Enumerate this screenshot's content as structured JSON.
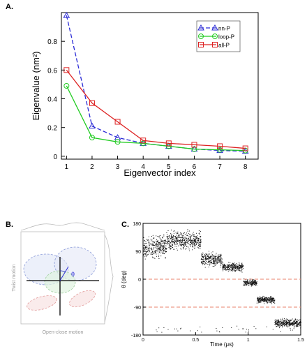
{
  "panels": {
    "a": "A.",
    "b": "B.",
    "c": "C."
  },
  "chart_data": [
    {
      "type": "line",
      "xlabel": "Eigenvector index",
      "ylabel": "Eigenvalue (nm²)",
      "xlim": [
        0.8,
        8.5
      ],
      "ylim": [
        -0.02,
        1.0
      ],
      "x_ticks": [
        1,
        2,
        3,
        4,
        5,
        6,
        7,
        8
      ],
      "y_ticks": [
        0,
        0.2,
        0.4,
        0.6,
        0.8
      ],
      "legend_position": "top-right",
      "x": [
        1,
        2,
        3,
        4,
        5,
        6,
        7,
        8
      ],
      "series": [
        {
          "name": "nn-P",
          "color": "#2b2bd6",
          "marker": "triangle",
          "dash": "6,3",
          "values": [
            0.98,
            0.21,
            0.13,
            0.09,
            0.07,
            0.05,
            0.04,
            0.035
          ]
        },
        {
          "name": "loop-P",
          "color": "#22cc22",
          "marker": "circle",
          "dash": "",
          "values": [
            0.49,
            0.13,
            0.1,
            0.09,
            0.07,
            0.05,
            0.045,
            0.04
          ]
        },
        {
          "name": "all-P",
          "color": "#dd2222",
          "marker": "square",
          "dash": "",
          "values": [
            0.6,
            0.37,
            0.24,
            0.11,
            0.09,
            0.08,
            0.07,
            0.055
          ]
        }
      ]
    },
    {
      "type": "scatter",
      "xlabel": "Open-close motion",
      "ylabel": "Twist motion",
      "angle_label": "θ"
    },
    {
      "type": "scatter",
      "xlabel": "Time (μs)",
      "ylabel": "θ (deg)",
      "xlim": [
        0,
        1.5
      ],
      "ylim": [
        -180,
        180
      ],
      "x_ticks": [
        0,
        0.5,
        1,
        1.5
      ],
      "x_tick_labels": [
        "0",
        "0.5",
        "1",
        "1.5"
      ],
      "y_ticks": [
        -180,
        -90,
        0,
        90,
        180
      ],
      "y_tick_labels": [
        "-180",
        "-90",
        "0",
        "90",
        "180"
      ],
      "reference_lines": [
        0,
        -90
      ],
      "segments": [
        {
          "x0": 0.0,
          "x1": 0.22,
          "mean": 105,
          "spread": 45
        },
        {
          "x0": 0.22,
          "x1": 0.55,
          "mean": 125,
          "spread": 40
        },
        {
          "x0": 0.55,
          "x1": 0.75,
          "mean": 65,
          "spread": 30
        },
        {
          "x0": 0.75,
          "x1": 0.95,
          "mean": 40,
          "spread": 18
        },
        {
          "x0": 0.95,
          "x1": 1.08,
          "mean": -10,
          "spread": 15
        },
        {
          "x0": 1.08,
          "x1": 1.25,
          "mean": -65,
          "spread": 15
        },
        {
          "x0": 1.25,
          "x1": 1.5,
          "mean": -140,
          "spread": 18
        }
      ]
    }
  ]
}
